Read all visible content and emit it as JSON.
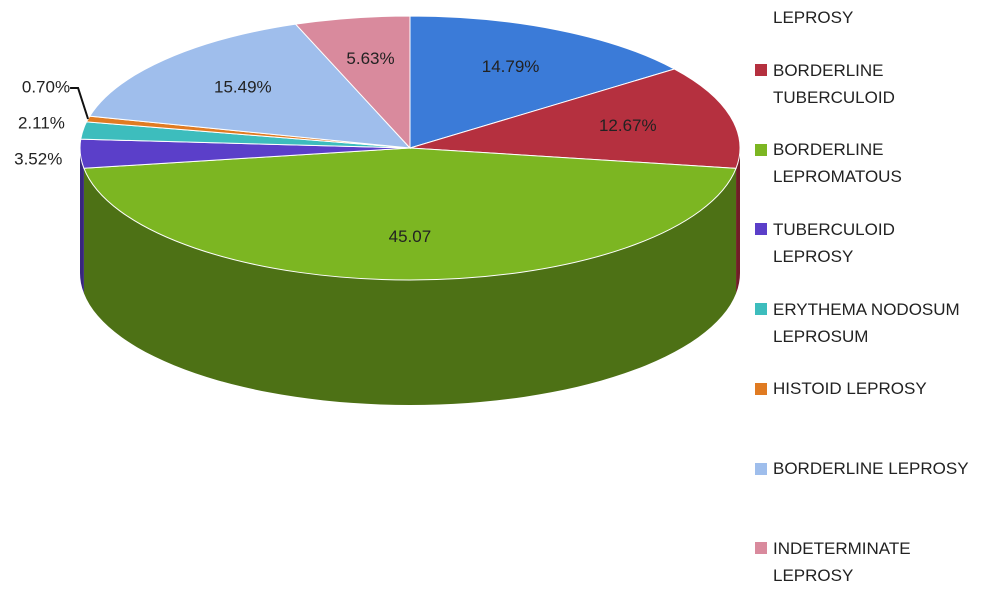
{
  "chart_data": {
    "type": "pie3d",
    "categories": [
      "LEPROSY",
      "BORDERLINE\nTUBERCULOID",
      "BORDERLINE\nLEPROMATOUS",
      "TUBERCULOID\nLEPROSY",
      "ERYTHEMA NODOSUM\nLEPROSUM",
      "HISTOID LEPROSY",
      "BORDERLINE LEPROSY",
      "INDETERMINATE\nLEPROSY"
    ],
    "values": [
      14.79,
      12.67,
      45.07,
      3.52,
      2.11,
      0.7,
      15.49,
      5.63
    ],
    "value_labels": [
      "14.79%",
      "12.67%",
      "45.07",
      "3.52%",
      "2.11%",
      "0.70%",
      "15.49%",
      "5.63%"
    ],
    "colors": [
      "#3b7bd8",
      "#b5303f",
      "#7cb622",
      "#5b3fc9",
      "#3dbdbd",
      "#e07b22",
      "#9fbeec",
      "#d98a9d"
    ]
  }
}
